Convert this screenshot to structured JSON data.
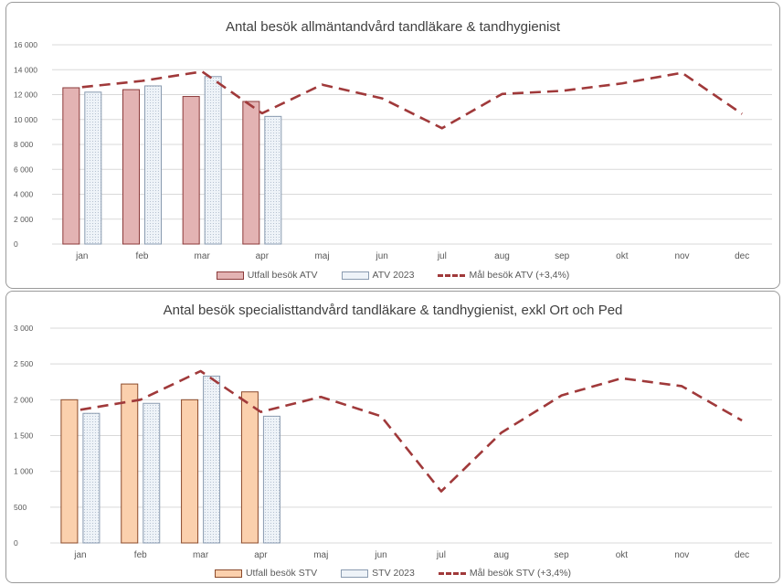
{
  "colors": {
    "atv_actual": "#e3b3b3",
    "atv_actual_border": "#8b3a3a",
    "stv_actual": "#fbd0ad",
    "stv_actual_border": "#8b4a2a",
    "prior_year": "#eef3f8",
    "prior_year_border": "#8a9bb0",
    "goal_line": "#a0393a",
    "grid": "#d9d9d9"
  },
  "chart_data": [
    {
      "type": "bar",
      "title": "Antal besök allmäntandvård tandläkare & tandhygienist",
      "categories": [
        "jan",
        "feb",
        "mar",
        "apr",
        "maj",
        "jun",
        "jul",
        "aug",
        "sep",
        "okt",
        "nov",
        "dec"
      ],
      "ylim": [
        0,
        16000
      ],
      "yticks": [
        "0",
        "2 000",
        "4 000",
        "6 000",
        "8 000",
        "10 000",
        "12 000",
        "14 000",
        "16 000"
      ],
      "grid": true,
      "legend_position": "bottom",
      "series": [
        {
          "name": "Utfall besök ATV",
          "type": "bar",
          "values": [
            12550,
            12400,
            11850,
            11450,
            null,
            null,
            null,
            null,
            null,
            null,
            null,
            null
          ]
        },
        {
          "name": "ATV 2023",
          "type": "bar",
          "values": [
            12200,
            12700,
            13450,
            10250,
            null,
            null,
            null,
            null,
            null,
            null,
            null,
            null
          ]
        },
        {
          "name": "Mål besök ATV (+3,4%)",
          "type": "line",
          "values": [
            12600,
            13100,
            13850,
            10500,
            12800,
            11700,
            9300,
            12050,
            12300,
            12900,
            13750,
            10450
          ]
        }
      ]
    },
    {
      "type": "bar",
      "title": "Antal besök specialisttandvård tandläkare & tandhygienist, exkl Ort och Ped",
      "categories": [
        "jan",
        "feb",
        "mar",
        "apr",
        "maj",
        "jun",
        "jul",
        "aug",
        "sep",
        "okt",
        "nov",
        "dec"
      ],
      "ylim": [
        0,
        3000
      ],
      "yticks": [
        "0",
        "500",
        "1 000",
        "1 500",
        "2 000",
        "2 500",
        "3 000"
      ],
      "grid": true,
      "legend_position": "bottom",
      "series": [
        {
          "name": "Utfall besök STV",
          "type": "bar",
          "values": [
            2000,
            2220,
            2000,
            2110,
            null,
            null,
            null,
            null,
            null,
            null,
            null,
            null
          ]
        },
        {
          "name": "STV 2023",
          "type": "bar",
          "values": [
            1810,
            1950,
            2330,
            1770,
            null,
            null,
            null,
            null,
            null,
            null,
            null,
            null
          ]
        },
        {
          "name": "Mål besök STV (+3,4%)",
          "type": "line",
          "values": [
            1860,
            2000,
            2400,
            1830,
            2040,
            1770,
            720,
            1540,
            2060,
            2300,
            2190,
            1710
          ]
        }
      ]
    }
  ]
}
